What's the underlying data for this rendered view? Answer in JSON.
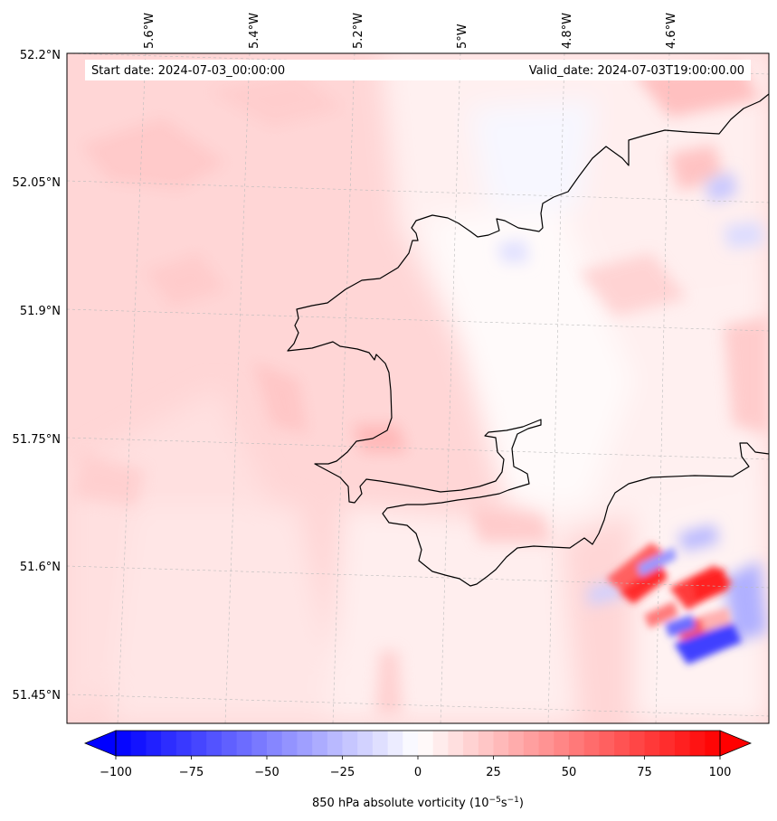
{
  "header": {
    "start_date": "Start date: 2024-07-03_00:00:00",
    "valid_date": "Valid_date: 2024-07-03T19:00:00.00"
  },
  "axes": {
    "lon_labels": [
      "5.6°W",
      "5.4°W",
      "5.2°W",
      "5°W",
      "4.8°W",
      "4.6°W"
    ],
    "lat_labels": [
      "52.2°N",
      "52.05°N",
      "51.9°N",
      "51.75°N",
      "51.6°N",
      "51.45°N"
    ]
  },
  "colorbar": {
    "ticks": [
      "−100",
      "−75",
      "−50",
      "−25",
      "0",
      "25",
      "50",
      "75",
      "100"
    ],
    "tick_values": [
      -100,
      -75,
      -50,
      -25,
      0,
      25,
      50,
      75,
      100
    ],
    "min": -100,
    "max": 100,
    "label": "850 hPa absolute vorticity (10",
    "label_unit_sup1": "−5",
    "label_unit_mid": "s",
    "label_unit_sup2": "−1",
    "label_close": ")",
    "negative_color": "#0000ff",
    "positive_color": "#ff0000",
    "extend": "both"
  },
  "colors": {
    "coastline": "#000000",
    "gridline": "#bbbbbb",
    "land_pink": "#ffd4d4",
    "light_pink": "#ffe8e8",
    "very_light": "#fff5f5"
  }
}
